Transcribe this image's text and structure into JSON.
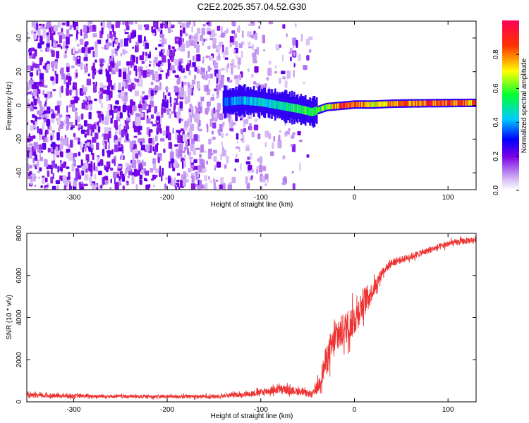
{
  "title": "C2E2.2025.357.04.52.G30",
  "chart_data": [
    {
      "type": "heatmap",
      "xlabel": "Height of straight line (km)",
      "ylabel": "Frequency (Hz)",
      "xlim": [
        -350,
        130
      ],
      "ylim": [
        -50,
        50
      ],
      "xticks": [
        -300,
        -200,
        -100,
        0,
        100
      ],
      "xtick_labels": [
        "-300",
        "-200",
        "-100",
        "0",
        "100"
      ],
      "yticks": [
        -40,
        -20,
        0,
        20,
        40
      ],
      "ytick_labels": [
        "-40",
        "-20",
        "0",
        "20",
        "40"
      ],
      "colorbar": {
        "label": "Normalized spectral amplitude",
        "range": [
          0,
          1
        ],
        "ticks": [
          0.0,
          0.2,
          0.4,
          0.6,
          0.8
        ],
        "tick_labels": [
          "0.0",
          "0.2",
          "0.4",
          "0.6",
          "0.8"
        ],
        "colors": [
          "#ffffff",
          "#d9c2f5",
          "#7a00e6",
          "#0000ff",
          "#00ccff",
          "#00ff33",
          "#ffff00",
          "#ff3300",
          "#ff0055"
        ]
      },
      "noise_region_x": [
        -350,
        -45
      ],
      "signal_track": {
        "x": [
          -140,
          -120,
          -100,
          -80,
          -60,
          -45,
          -30,
          -10,
          0,
          20,
          40,
          60,
          80,
          100,
          130
        ],
        "y": [
          2,
          3,
          2,
          0,
          -2,
          -4,
          -1,
          0,
          0.5,
          0.5,
          1,
          1.2,
          1.3,
          1.4,
          1.5
        ],
        "amplitude": [
          0.35,
          0.4,
          0.45,
          0.45,
          0.55,
          0.6,
          0.6,
          0.9,
          0.9,
          0.7,
          0.75,
          0.8,
          0.85,
          0.85,
          0.8
        ]
      }
    },
    {
      "type": "line",
      "xlabel": "Height of straight line (km)",
      "ylabel": "SNR (10 * v/v)",
      "xlim": [
        -350,
        130
      ],
      "ylim": [
        0,
        8000
      ],
      "xticks": [
        -300,
        -200,
        -100,
        0,
        100
      ],
      "xtick_labels": [
        "-300",
        "-200",
        "-100",
        "0",
        "100"
      ],
      "yticks": [
        0,
        2000,
        4000,
        6000,
        8000
      ],
      "ytick_labels": [
        "0",
        "2000",
        "4000",
        "6000",
        "8000"
      ],
      "color": "#ee3333",
      "series": [
        {
          "name": "SNR",
          "x": [
            -350,
            -300,
            -250,
            -200,
            -150,
            -120,
            -100,
            -80,
            -60,
            -45,
            -38,
            -30,
            -20,
            -10,
            0,
            10,
            20,
            30,
            40,
            60,
            80,
            100,
            120,
            130
          ],
          "y": [
            300,
            280,
            260,
            250,
            260,
            350,
            450,
            600,
            500,
            350,
            800,
            2000,
            3000,
            3500,
            3900,
            4800,
            5300,
            6200,
            6600,
            6900,
            7200,
            7500,
            7650,
            7700
          ],
          "spread": [
            250,
            200,
            180,
            180,
            200,
            250,
            350,
            450,
            400,
            300,
            800,
            1600,
            1800,
            1800,
            1700,
            1500,
            900,
            500,
            400,
            350,
            350,
            350,
            350,
            350
          ]
        }
      ]
    }
  ]
}
